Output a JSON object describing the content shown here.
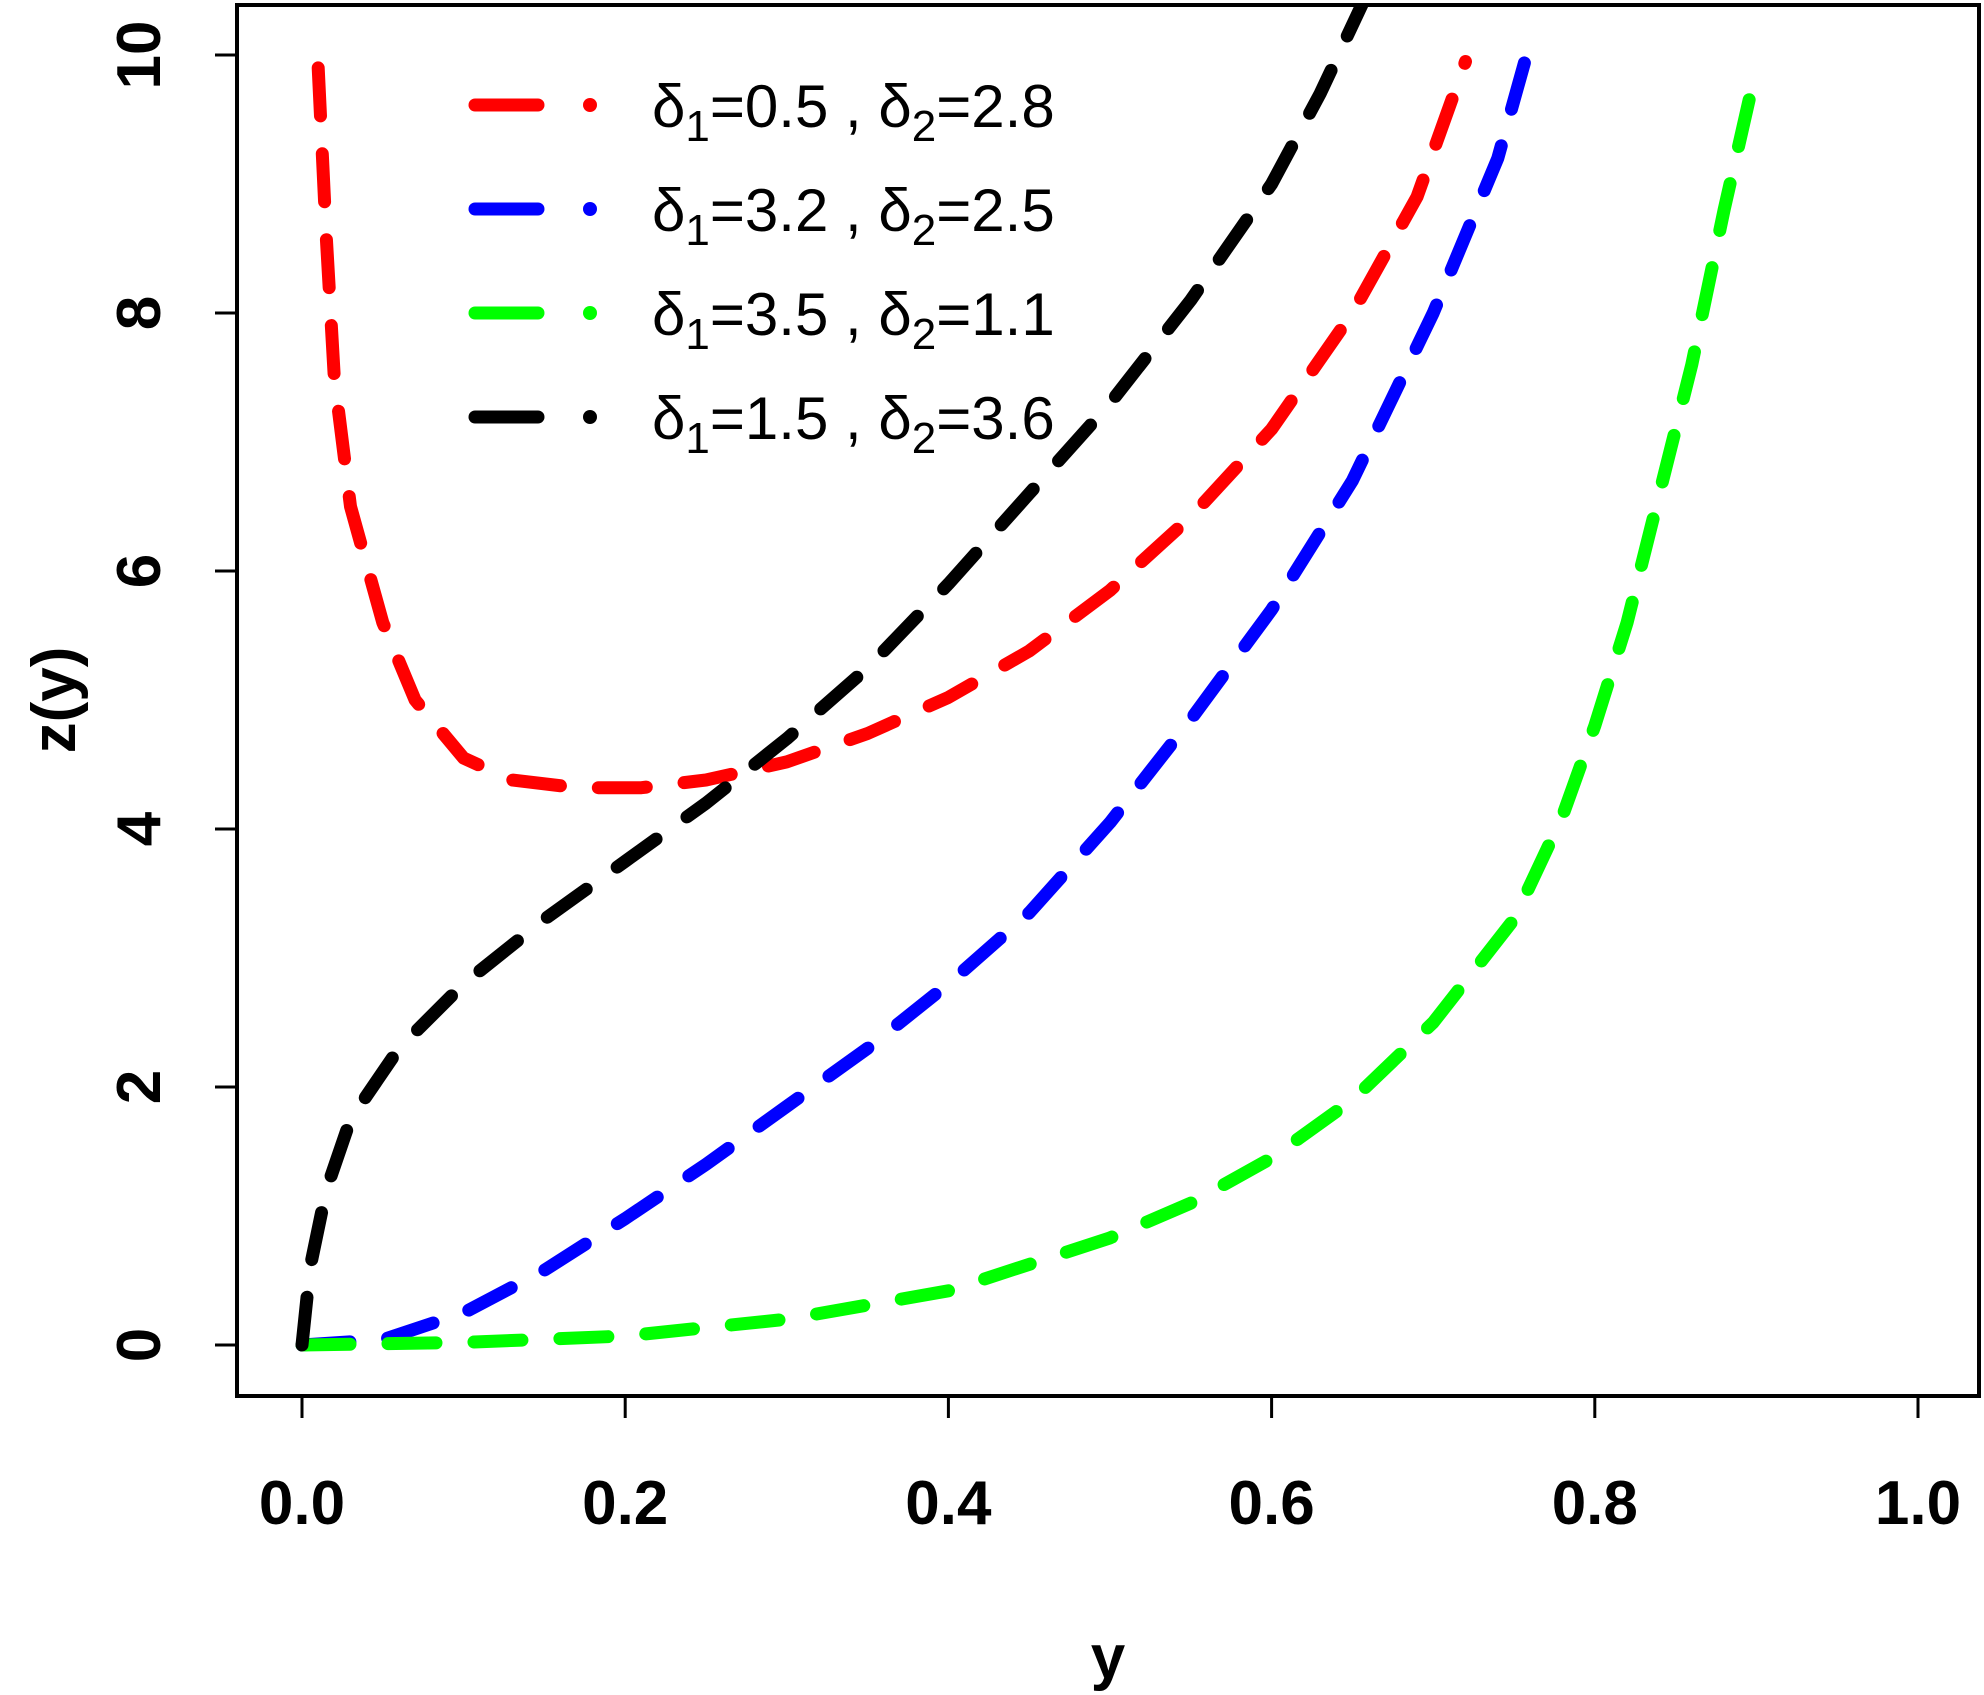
{
  "chart_data": {
    "type": "line",
    "xlabel": "y",
    "ylabel": "z(y)",
    "xlim": [
      0,
      1
    ],
    "ylim": [
      0,
      10
    ],
    "x_ticks": [
      "0.0",
      "0.2",
      "0.4",
      "0.6",
      "0.8",
      "1.0"
    ],
    "y_ticks": [
      "0",
      "2",
      "4",
      "6",
      "8",
      "10"
    ],
    "grid": false,
    "legend_position": "top-center",
    "series": [
      {
        "name": "δ1=0.5 , δ2=2.8",
        "legend": {
          "d1_sym": "δ",
          "d1_sub": "1",
          "d1_val": "=0.5 , ",
          "d2_sym": "δ",
          "d2_sub": "2",
          "d2_val": "=2.8"
        },
        "color": "#ff0000",
        "points": [
          [
            0.01,
            9.9
          ],
          [
            0.015,
            8.6
          ],
          [
            0.02,
            7.5
          ],
          [
            0.03,
            6.5
          ],
          [
            0.05,
            5.6
          ],
          [
            0.07,
            5.0
          ],
          [
            0.1,
            4.55
          ],
          [
            0.13,
            4.38
          ],
          [
            0.17,
            4.32
          ],
          [
            0.21,
            4.32
          ],
          [
            0.25,
            4.38
          ],
          [
            0.3,
            4.52
          ],
          [
            0.35,
            4.74
          ],
          [
            0.4,
            5.02
          ],
          [
            0.45,
            5.38
          ],
          [
            0.5,
            5.85
          ],
          [
            0.55,
            6.42
          ],
          [
            0.6,
            7.1
          ],
          [
            0.65,
            8.0
          ],
          [
            0.69,
            8.9
          ],
          [
            0.72,
            9.95
          ]
        ]
      },
      {
        "name": "δ1=3.2 , δ2=2.5",
        "legend": {
          "d1_sym": "δ",
          "d1_sub": "1",
          "d1_val": "=3.2 , ",
          "d2_sym": "δ",
          "d2_sub": "2",
          "d2_val": "=2.5"
        },
        "color": "#0000ff",
        "points": [
          [
            0.0,
            0.0
          ],
          [
            0.05,
            0.04
          ],
          [
            0.1,
            0.25
          ],
          [
            0.15,
            0.58
          ],
          [
            0.2,
            0.98
          ],
          [
            0.25,
            1.4
          ],
          [
            0.3,
            1.85
          ],
          [
            0.35,
            2.3
          ],
          [
            0.4,
            2.8
          ],
          [
            0.45,
            3.35
          ],
          [
            0.5,
            4.05
          ],
          [
            0.55,
            4.85
          ],
          [
            0.6,
            5.7
          ],
          [
            0.65,
            6.7
          ],
          [
            0.7,
            8.0
          ],
          [
            0.74,
            9.2
          ],
          [
            0.76,
            10.1
          ]
        ]
      },
      {
        "name": "δ1=3.5 , δ2=1.1",
        "legend": {
          "d1_sym": "δ",
          "d1_sub": "1",
          "d1_val": "=3.5 , ",
          "d2_sym": "δ",
          "d2_sub": "2",
          "d2_val": "=1.1"
        },
        "color": "#00ff00",
        "points": [
          [
            0.0,
            0.0
          ],
          [
            0.1,
            0.02
          ],
          [
            0.2,
            0.07
          ],
          [
            0.3,
            0.2
          ],
          [
            0.4,
            0.42
          ],
          [
            0.5,
            0.83
          ],
          [
            0.55,
            1.1
          ],
          [
            0.6,
            1.45
          ],
          [
            0.65,
            1.9
          ],
          [
            0.7,
            2.5
          ],
          [
            0.75,
            3.3
          ],
          [
            0.78,
            4.1
          ],
          [
            0.8,
            4.8
          ],
          [
            0.82,
            5.6
          ],
          [
            0.84,
            6.6
          ],
          [
            0.86,
            7.6
          ],
          [
            0.88,
            8.8
          ],
          [
            0.9,
            9.9
          ]
        ]
      },
      {
        "name": "δ1=1.5 , δ2=3.6",
        "legend": {
          "d1_sym": "δ",
          "d1_sub": "1",
          "d1_val": "=1.5 , ",
          "d2_sym": "δ",
          "d2_sub": "2",
          "d2_val": "=3.6"
        },
        "color": "#000000",
        "points": [
          [
            0.0,
            0.0
          ],
          [
            0.005,
            0.6
          ],
          [
            0.015,
            1.2
          ],
          [
            0.03,
            1.75
          ],
          [
            0.06,
            2.3
          ],
          [
            0.1,
            2.8
          ],
          [
            0.15,
            3.3
          ],
          [
            0.2,
            3.75
          ],
          [
            0.25,
            4.2
          ],
          [
            0.3,
            4.7
          ],
          [
            0.35,
            5.25
          ],
          [
            0.4,
            5.9
          ],
          [
            0.45,
            6.6
          ],
          [
            0.5,
            7.3
          ],
          [
            0.55,
            8.1
          ],
          [
            0.6,
            9.0
          ],
          [
            0.63,
            9.7
          ],
          [
            0.66,
            10.5
          ]
        ]
      }
    ]
  }
}
